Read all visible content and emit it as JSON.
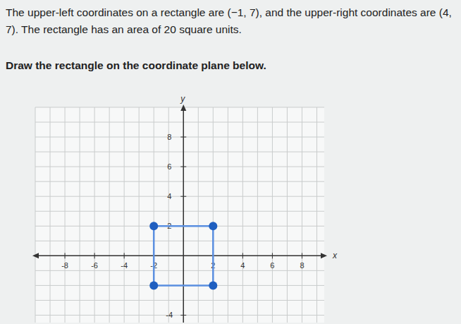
{
  "question": {
    "text": "The upper-left coordinates on a rectangle are (−1, 7), and the upper-right coordinates are (4, 7). The rectangle has an area of 20 square units.",
    "instruction": "Draw the rectangle on the coordinate plane below."
  },
  "chart_data": {
    "type": "scatter",
    "x_label": "x",
    "y_label": "y",
    "x": [
      -2,
      2,
      2,
      -2
    ],
    "values": [
      2,
      2,
      -2,
      -2
    ],
    "color": "#1f5fc0",
    "marker": "circle",
    "line_style": "solid",
    "xlim": [
      -10,
      9.5
    ],
    "ylim": [
      -4.5,
      10
    ],
    "xticks": [
      -8,
      -6,
      -4,
      -2,
      2,
      4,
      6,
      8
    ],
    "yticks": [
      -4,
      2,
      4,
      6,
      8
    ],
    "grid": true
  }
}
